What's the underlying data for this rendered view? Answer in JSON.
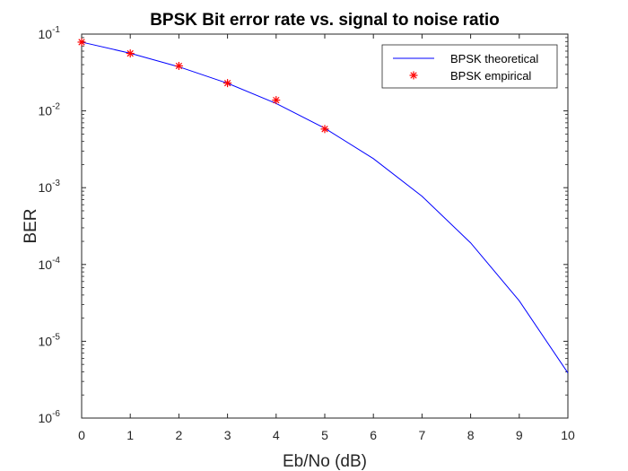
{
  "chart_data": {
    "type": "line",
    "title": "BPSK Bit error rate vs. signal to noise ratio",
    "xlabel": "Eb/No (dB)",
    "ylabel": "BER",
    "xlim": [
      0,
      10
    ],
    "ylim": [
      1e-06,
      0.1
    ],
    "yscale": "log",
    "x_ticks": [
      "0",
      "1",
      "2",
      "3",
      "4",
      "5",
      "6",
      "7",
      "8",
      "9",
      "10"
    ],
    "y_ticks": [
      {
        "base": "10",
        "exp": "-6",
        "value": 1e-06
      },
      {
        "base": "10",
        "exp": "-5",
        "value": 1e-05
      },
      {
        "base": "10",
        "exp": "-4",
        "value": 0.0001
      },
      {
        "base": "10",
        "exp": "-3",
        "value": 0.001
      },
      {
        "base": "10",
        "exp": "-2",
        "value": 0.01
      },
      {
        "base": "10",
        "exp": "-1",
        "value": 0.1
      }
    ],
    "grid": false,
    "legend_position": "top-right",
    "series": [
      {
        "name": "BPSK theoretical",
        "style": "line",
        "color": "#0000ff",
        "x": [
          0,
          1,
          2,
          3,
          4,
          5,
          6,
          7,
          8,
          9,
          10
        ],
        "values": [
          0.0786,
          0.0563,
          0.0375,
          0.0229,
          0.0125,
          0.00595,
          0.00239,
          0.000773,
          0.000191,
          3.36e-05,
          3.87e-06
        ]
      },
      {
        "name": "BPSK empirical",
        "style": "marker",
        "marker": "asterisk",
        "color": "#ff0000",
        "x": [
          0,
          1,
          2,
          3,
          4,
          5
        ],
        "values": [
          0.0786,
          0.056,
          0.0385,
          0.023,
          0.0138,
          0.0058
        ]
      }
    ]
  }
}
